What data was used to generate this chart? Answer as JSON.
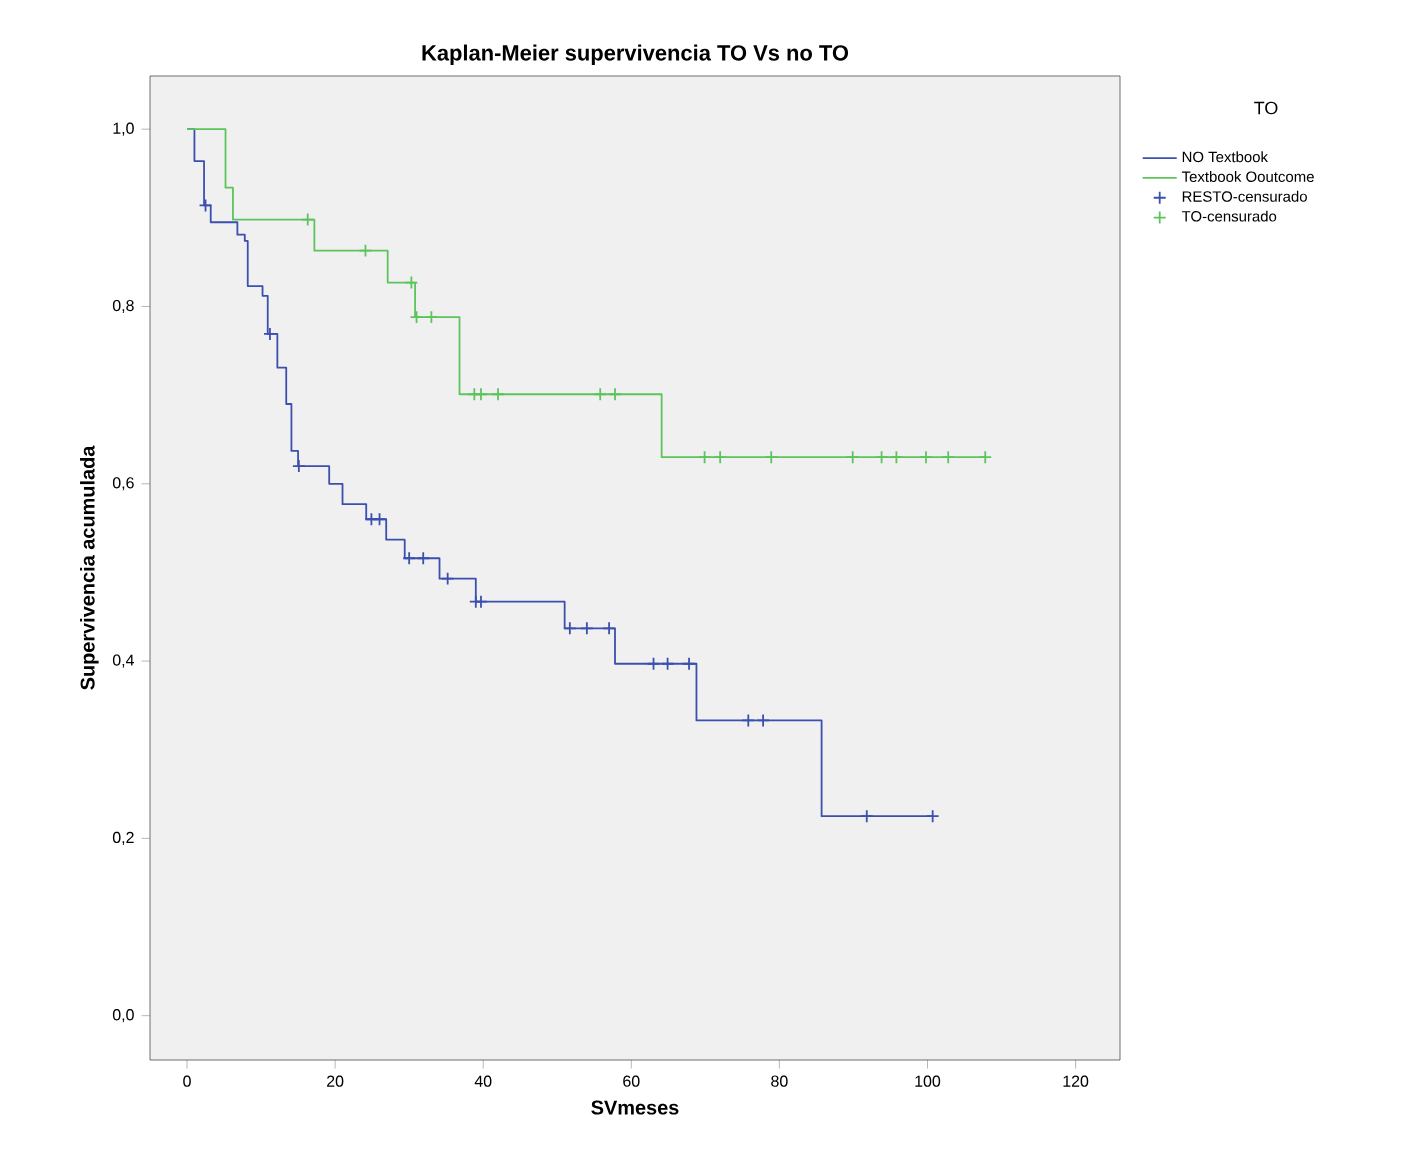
{
  "chart_data": {
    "type": "step",
    "title": "Kaplan-Meier supervivencia TO Vs no TO",
    "xlabel": "SVmeses",
    "ylabel": "Supervivencia acumulada",
    "legend_title": "TO",
    "legend": "top right",
    "marker": "none",
    "xlim": [
      -5,
      126
    ],
    "ylim": [
      -0.05,
      1.06
    ],
    "xticks": [
      0,
      20,
      40,
      60,
      80,
      100,
      120
    ],
    "yticks": [
      {
        "value": 0,
        "label": "0,0"
      },
      {
        "value": 0.2,
        "label": "0,2"
      },
      {
        "value": 0.4,
        "label": "0,4"
      },
      {
        "value": 0.6,
        "label": "0,6"
      },
      {
        "value": 0.8,
        "label": "0,8"
      },
      {
        "value": 1,
        "label": "1,0"
      }
    ],
    "series": [
      {
        "name": "NO Textbook",
        "color": "#3b4fae",
        "x": [
          0,
          1.0,
          2.3,
          3.2,
          6.8,
          7.8,
          8.2,
          10.2,
          10.9,
          12.2,
          13.4,
          14.1,
          15.0,
          19.2,
          21.0,
          24.2,
          26.9,
          29.4,
          34.1,
          39.0,
          51.0,
          57.8,
          68.8,
          85.7,
          100.7
        ],
        "values": [
          1,
          0.964,
          0.914,
          0.895,
          0.881,
          0.874,
          0.823,
          0.812,
          0.769,
          0.731,
          0.69,
          0.637,
          0.62,
          0.6,
          0.577,
          0.56,
          0.537,
          0.516,
          0.493,
          0.467,
          0.437,
          0.397,
          0.333,
          0.225,
          0.225
        ]
      },
      {
        "name": "Textbook Ooutcome",
        "color": "#5cc45c",
        "x": [
          0,
          5.2,
          6.2,
          17.2,
          27.1,
          30.8,
          36.8,
          64.1,
          107.8
        ],
        "values": [
          1,
          0.934,
          0.898,
          0.863,
          0.827,
          0.788,
          0.701,
          0.63,
          0.63
        ]
      },
      {
        "name": "RESTO-censurado",
        "type": "scatter",
        "marker": "cross",
        "color": "#3b4fae",
        "x": [
          2.5,
          11.2,
          15.1,
          24.9,
          26.0,
          30.0,
          31.9,
          35.2,
          39.0,
          39.7,
          51.7,
          54.0,
          57.0,
          63.0,
          64.9,
          67.8,
          75.8,
          77.8,
          91.8,
          100.7
        ],
        "values": [
          0.914,
          0.769,
          0.62,
          0.56,
          0.56,
          0.516,
          0.516,
          0.493,
          0.467,
          0.467,
          0.437,
          0.437,
          0.437,
          0.397,
          0.397,
          0.397,
          0.333,
          0.333,
          0.225,
          0.225
        ]
      },
      {
        "name": "TO-censurado",
        "type": "scatter",
        "marker": "cross",
        "color": "#5cc45c",
        "x": [
          16.3,
          24.1,
          30.3,
          31.0,
          33.0,
          38.8,
          39.7,
          42.0,
          55.8,
          57.8,
          69.9,
          72.0,
          78.9,
          89.9,
          93.8,
          95.8,
          99.8,
          102.8,
          107.8
        ],
        "values": [
          0.898,
          0.863,
          0.827,
          0.788,
          0.788,
          0.701,
          0.701,
          0.701,
          0.701,
          0.701,
          0.63,
          0.63,
          0.63,
          0.63,
          0.63,
          0.63,
          0.63,
          0.63,
          0.63
        ]
      }
    ]
  }
}
